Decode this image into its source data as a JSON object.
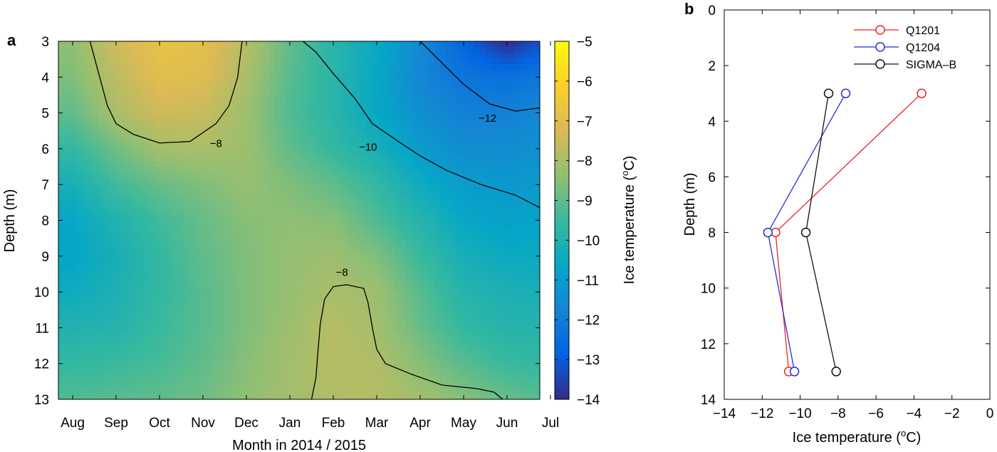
{
  "chart_data": [
    {
      "panel": "a",
      "type": "heatmap",
      "subtype": "filled-contour",
      "xlabel": "Month in 2014 / 2015",
      "ylabel": "Depth (m)",
      "colorbar_label": "Ice temperature (°C)",
      "colorbar_label_parts": [
        "Ice temperature (",
        "o",
        "C)"
      ],
      "x_ticks": [
        "Aug",
        "Sep",
        "Oct",
        "Nov",
        "Dec",
        "Jan",
        "Feb",
        "Mar",
        "Apr",
        "May",
        "Jun",
        "Jul"
      ],
      "y_ticks": [
        3,
        4,
        5,
        6,
        7,
        8,
        9,
        10,
        11,
        12,
        13
      ],
      "ylim": [
        13,
        3
      ],
      "y_reversed": true,
      "colorbar_ticks": [
        -5,
        -6,
        -7,
        -8,
        -9,
        -10,
        -11,
        -12,
        -13,
        -14
      ],
      "colorbar_range": [
        -14,
        -5
      ],
      "colormap": "parula",
      "colormap_stops": [
        "#352a87",
        "#0363e1",
        "#1485d4",
        "#06a7c6",
        "#38b99e",
        "#92bf73",
        "#d9ba56",
        "#fcce2e",
        "#f9fb0e"
      ],
      "months": [
        0,
        1,
        2,
        3,
        4,
        5,
        6,
        7,
        8,
        9,
        10,
        11,
        12
      ],
      "depths": [
        3,
        4,
        5,
        6,
        7,
        8,
        9,
        10,
        11,
        12,
        13
      ],
      "temperature": [
        [
          -8.4,
          -7.4,
          -6.8,
          -6.9,
          -7.8,
          -9.0,
          -9.8,
          -10.5,
          -11.6,
          -12.8,
          -14.0,
          -13.0,
          -11.2
        ],
        [
          -8.6,
          -7.7,
          -7.0,
          -7.1,
          -8.0,
          -9.1,
          -9.8,
          -10.6,
          -11.7,
          -12.3,
          -12.4,
          -12.2,
          -11.1
        ],
        [
          -9.0,
          -8.0,
          -7.4,
          -7.5,
          -8.2,
          -9.2,
          -9.8,
          -10.6,
          -11.4,
          -11.9,
          -11.9,
          -11.6,
          -11.0
        ],
        [
          -9.6,
          -8.8,
          -8.1,
          -8.0,
          -8.2,
          -9.0,
          -9.6,
          -10.2,
          -11.0,
          -11.5,
          -11.5,
          -11.3,
          -10.9
        ],
        [
          -10.2,
          -9.4,
          -8.9,
          -8.6,
          -8.3,
          -8.6,
          -9.0,
          -9.6,
          -10.4,
          -11.0,
          -11.1,
          -11.0,
          -10.8
        ],
        [
          -10.6,
          -10.0,
          -9.4,
          -8.9,
          -8.5,
          -8.4,
          -8.5,
          -9.2,
          -9.9,
          -10.6,
          -10.8,
          -10.7,
          -10.6
        ],
        [
          -10.7,
          -10.2,
          -9.6,
          -9.0,
          -8.6,
          -8.3,
          -8.2,
          -8.6,
          -9.5,
          -10.2,
          -10.5,
          -10.5,
          -10.4
        ],
        [
          -10.4,
          -10.1,
          -9.6,
          -9.1,
          -8.6,
          -8.3,
          -8.0,
          -8.2,
          -9.1,
          -9.9,
          -10.1,
          -10.2,
          -10.1
        ],
        [
          -10.0,
          -9.9,
          -9.5,
          -9.1,
          -8.6,
          -8.2,
          -7.8,
          -8.1,
          -8.9,
          -9.6,
          -9.9,
          -9.9,
          -9.9
        ],
        [
          -9.6,
          -9.5,
          -9.3,
          -9.0,
          -8.5,
          -8.1,
          -7.8,
          -7.9,
          -8.5,
          -9.1,
          -9.5,
          -9.6,
          -9.6
        ],
        [
          -9.2,
          -9.1,
          -9.0,
          -8.8,
          -8.4,
          -8.1,
          -7.9,
          -7.8,
          -8.1,
          -8.5,
          -8.9,
          -9.2,
          -9.2
        ]
      ],
      "contour_lines": [
        {
          "level": -8,
          "label": "−8",
          "points": [
            [
              0.4,
              3.0
            ],
            [
              0.6,
              3.9
            ],
            [
              0.8,
              4.8
            ],
            [
              1.0,
              5.3
            ],
            [
              1.4,
              5.6
            ],
            [
              2.0,
              5.84
            ],
            [
              2.7,
              5.8
            ],
            [
              3.3,
              5.3
            ],
            [
              3.6,
              4.8
            ],
            [
              3.8,
              4.0
            ],
            [
              3.9,
              3.0
            ]
          ]
        },
        {
          "level": -10,
          "label": "−10",
          "points": [
            [
              5.3,
              3.0
            ],
            [
              5.6,
              3.3
            ],
            [
              6.0,
              3.9
            ],
            [
              6.5,
              4.6
            ],
            [
              6.9,
              5.3
            ],
            [
              7.5,
              5.8
            ],
            [
              8.0,
              6.2
            ],
            [
              8.6,
              6.6
            ],
            [
              9.4,
              7.0
            ],
            [
              10.2,
              7.3
            ],
            [
              11.0,
              7.8
            ],
            [
              11.6,
              8.2
            ],
            [
              12.1,
              8.5
            ]
          ]
        },
        {
          "level": -12,
          "label": "−12",
          "points": [
            [
              8.0,
              3.0
            ],
            [
              8.5,
              3.6
            ],
            [
              9.0,
              4.2
            ],
            [
              9.6,
              4.75
            ],
            [
              10.2,
              4.95
            ],
            [
              10.8,
              4.85
            ],
            [
              11.3,
              4.5
            ],
            [
              11.6,
              4.0
            ],
            [
              11.7,
              3.0
            ]
          ]
        },
        {
          "level": -8,
          "label": "−8",
          "points": [
            [
              5.5,
              13.0
            ],
            [
              5.6,
              12.4
            ],
            [
              5.65,
              11.6
            ],
            [
              5.7,
              10.9
            ],
            [
              5.8,
              10.2
            ],
            [
              6.0,
              9.85
            ],
            [
              6.3,
              9.8
            ],
            [
              6.7,
              9.9
            ],
            [
              6.8,
              10.3
            ],
            [
              6.9,
              11.0
            ],
            [
              7.0,
              11.6
            ],
            [
              7.2,
              12.0
            ],
            [
              7.8,
              12.3
            ],
            [
              8.5,
              12.6
            ],
            [
              9.3,
              12.7
            ],
            [
              9.7,
              12.8
            ],
            [
              9.9,
              13.0
            ]
          ]
        }
      ],
      "contour_label_positions": [
        [
          3.3,
          5.95
        ],
        [
          6.8,
          6.05
        ],
        [
          9.55,
          5.25
        ],
        [
          6.2,
          9.55
        ]
      ]
    },
    {
      "panel": "b",
      "type": "line",
      "xlabel": "Ice temperature (°C)",
      "xlabel_parts": [
        "Ice temperature (",
        "o",
        "C)"
      ],
      "ylabel": "Depth (m)",
      "xlim": [
        -14,
        0
      ],
      "ylim": [
        14,
        0
      ],
      "y_reversed": true,
      "x_ticks": [
        "−14",
        "−12",
        "−10",
        "−8",
        "−6",
        "−4",
        "−2",
        "0"
      ],
      "x_tick_values": [
        -14,
        -12,
        -10,
        -8,
        -6,
        -4,
        -2,
        0
      ],
      "y_ticks": [
        0,
        2,
        4,
        6,
        8,
        10,
        12,
        14
      ],
      "legend_position": "top-right",
      "series": [
        {
          "name": "Q1201",
          "color": "#e8262a",
          "x": [
            -3.6,
            -11.3,
            -10.6
          ],
          "y": [
            3,
            8,
            13
          ]
        },
        {
          "name": "Q1204",
          "color": "#2b2fd1",
          "x": [
            -7.6,
            -11.7,
            -10.3
          ],
          "y": [
            3,
            8,
            13
          ]
        },
        {
          "name": "SIGMA–B",
          "color": "#111111",
          "x": [
            -8.5,
            -9.7,
            -8.1
          ],
          "y": [
            3,
            8,
            13
          ]
        }
      ]
    }
  ]
}
